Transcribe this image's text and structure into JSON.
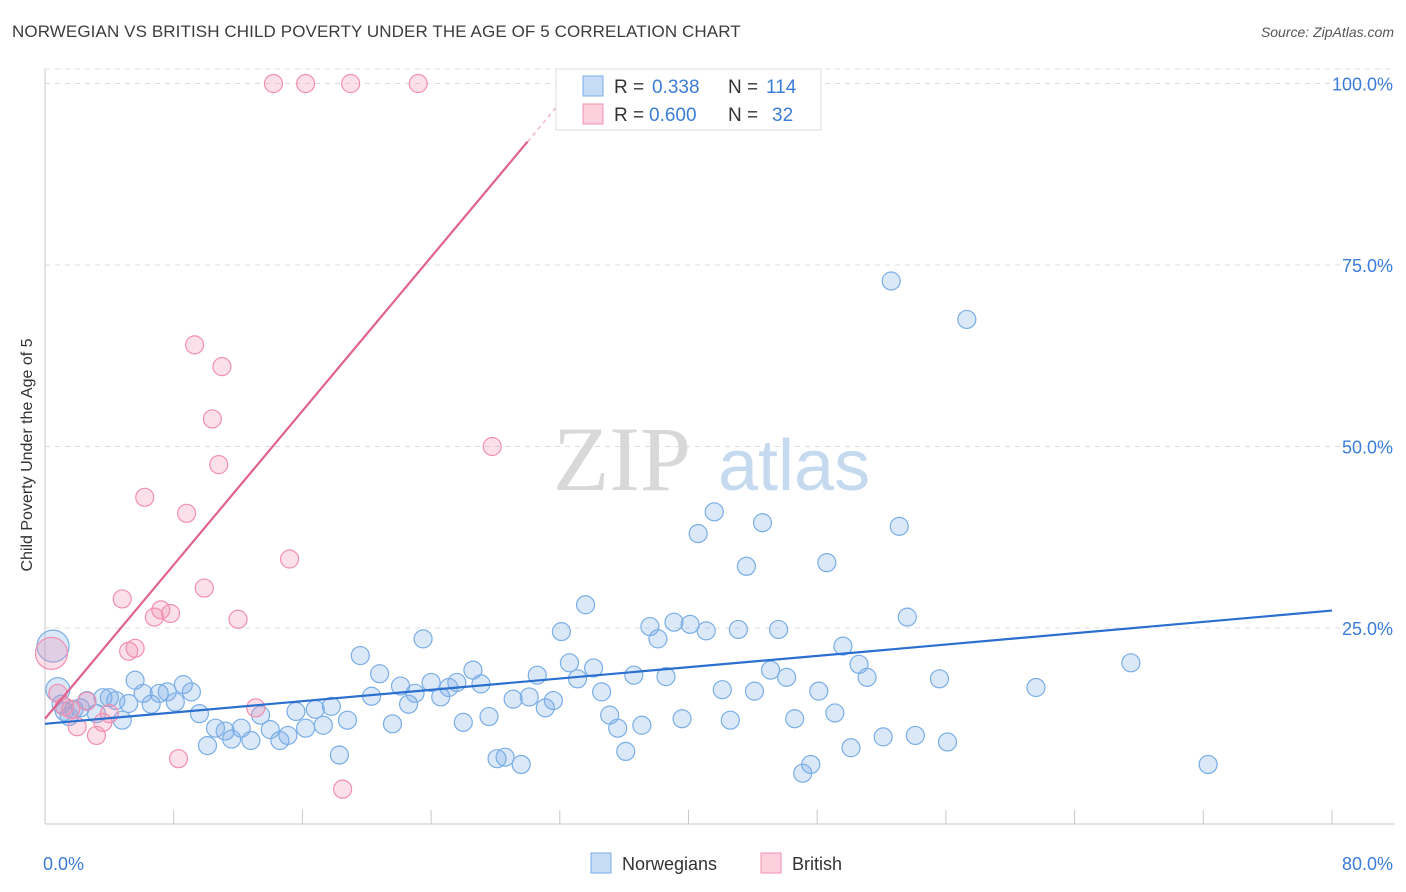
{
  "header": {
    "title": "NORWEGIAN VS BRITISH CHILD POVERTY UNDER THE AGE OF 5 CORRELATION CHART",
    "source": "Source: ZipAtlas.com"
  },
  "watermark": {
    "zip": "ZIP",
    "atlas": "atlas"
  },
  "legend_top": [
    {
      "r_label": "R =",
      "r_value": "0.338",
      "n_label": "N =",
      "n_value": "114",
      "color": "#aecbf0"
    },
    {
      "r_label": "R =",
      "r_value": "0.600",
      "n_label": "N =",
      "n_value": "32",
      "color": "#f7b8cb"
    }
  ],
  "legend_bottom": [
    {
      "label": "Norwegians",
      "color": "#aecbf0"
    },
    {
      "label": "British",
      "color": "#f7b8cb"
    }
  ],
  "chart_data": {
    "type": "scatter",
    "title": "NORWEGIAN VS BRITISH CHILD POVERTY UNDER THE AGE OF 5 CORRELATION CHART",
    "xlabel": "",
    "ylabel": "Child Poverty Under the Age of 5",
    "xlim": [
      0,
      80
    ],
    "ylim": [
      -2,
      102
    ],
    "x_tick_labels": [
      "0.0%",
      "80.0%"
    ],
    "y_tick_labels": [
      "25.0%",
      "50.0%",
      "75.0%",
      "100.0%"
    ],
    "y_ticks": [
      25,
      50,
      75,
      100
    ],
    "series": [
      {
        "name": "Norwegians",
        "color": "#7aaee6",
        "line_color": "#2b6fcf",
        "trend": {
          "x": [
            0,
            80
          ],
          "y": [
            11.8,
            27.4
          ]
        },
        "points": [
          [
            0.5,
            22.5
          ],
          [
            0.8,
            16.5
          ],
          [
            1.0,
            14.5
          ],
          [
            1.2,
            13.5
          ],
          [
            1.5,
            12.8
          ],
          [
            1.8,
            13.8
          ],
          [
            2.2,
            14.0
          ],
          [
            2.6,
            15.0
          ],
          [
            3.2,
            13.2
          ],
          [
            3.6,
            15.4
          ],
          [
            4.0,
            15.4
          ],
          [
            4.4,
            15.0
          ],
          [
            4.8,
            12.3
          ],
          [
            5.2,
            14.6
          ],
          [
            5.6,
            17.8
          ],
          [
            6.1,
            16.0
          ],
          [
            6.6,
            14.5
          ],
          [
            7.1,
            16.0
          ],
          [
            7.6,
            16.2
          ],
          [
            8.1,
            14.8
          ],
          [
            8.6,
            17.2
          ],
          [
            9.1,
            16.2
          ],
          [
            9.6,
            13.2
          ],
          [
            10.1,
            8.8
          ],
          [
            10.6,
            11.2
          ],
          [
            11.2,
            10.8
          ],
          [
            11.6,
            9.7
          ],
          [
            12.2,
            11.2
          ],
          [
            12.8,
            9.5
          ],
          [
            13.4,
            13.0
          ],
          [
            14.0,
            11.0
          ],
          [
            14.6,
            9.5
          ],
          [
            15.1,
            10.2
          ],
          [
            15.6,
            13.5
          ],
          [
            16.2,
            11.2
          ],
          [
            16.8,
            13.8
          ],
          [
            17.3,
            11.6
          ],
          [
            17.8,
            14.2
          ],
          [
            18.3,
            7.5
          ],
          [
            18.8,
            12.3
          ],
          [
            19.6,
            21.2
          ],
          [
            20.3,
            15.6
          ],
          [
            20.8,
            18.7
          ],
          [
            21.6,
            11.8
          ],
          [
            22.1,
            17.0
          ],
          [
            22.6,
            14.5
          ],
          [
            23.0,
            16.0
          ],
          [
            23.5,
            23.5
          ],
          [
            24.0,
            17.5
          ],
          [
            24.6,
            15.5
          ],
          [
            25.1,
            16.8
          ],
          [
            25.6,
            17.5
          ],
          [
            26.0,
            12.0
          ],
          [
            26.6,
            19.2
          ],
          [
            27.1,
            17.3
          ],
          [
            27.6,
            12.8
          ],
          [
            28.1,
            7.0
          ],
          [
            28.6,
            7.2
          ],
          [
            29.1,
            15.2
          ],
          [
            29.6,
            6.2
          ],
          [
            30.1,
            15.5
          ],
          [
            30.6,
            18.5
          ],
          [
            31.1,
            14.0
          ],
          [
            31.6,
            15.0
          ],
          [
            32.1,
            24.5
          ],
          [
            32.6,
            20.2
          ],
          [
            33.1,
            18.0
          ],
          [
            33.6,
            28.2
          ],
          [
            34.1,
            19.5
          ],
          [
            34.6,
            16.2
          ],
          [
            35.1,
            13.0
          ],
          [
            35.6,
            11.2
          ],
          [
            36.1,
            8.0
          ],
          [
            36.6,
            18.5
          ],
          [
            37.1,
            11.6
          ],
          [
            37.6,
            25.2
          ],
          [
            38.1,
            23.5
          ],
          [
            38.6,
            18.3
          ],
          [
            39.1,
            25.8
          ],
          [
            39.6,
            12.5
          ],
          [
            40.1,
            25.5
          ],
          [
            40.6,
            38.0
          ],
          [
            41.1,
            24.6
          ],
          [
            41.6,
            41.0
          ],
          [
            42.1,
            16.5
          ],
          [
            42.6,
            12.3
          ],
          [
            43.1,
            24.8
          ],
          [
            43.6,
            33.5
          ],
          [
            44.1,
            16.3
          ],
          [
            44.6,
            39.5
          ],
          [
            45.1,
            19.2
          ],
          [
            45.6,
            24.8
          ],
          [
            46.1,
            18.2
          ],
          [
            46.6,
            12.5
          ],
          [
            47.1,
            5.0
          ],
          [
            47.6,
            6.2
          ],
          [
            48.1,
            16.3
          ],
          [
            48.6,
            34.0
          ],
          [
            49.1,
            13.3
          ],
          [
            49.6,
            22.5
          ],
          [
            50.1,
            8.5
          ],
          [
            50.6,
            20.0
          ],
          [
            51.1,
            18.2
          ],
          [
            52.1,
            10.0
          ],
          [
            52.6,
            72.8
          ],
          [
            53.1,
            39.0
          ],
          [
            53.6,
            26.5
          ],
          [
            54.1,
            10.2
          ],
          [
            55.6,
            18.0
          ],
          [
            56.1,
            9.3
          ],
          [
            57.3,
            67.5
          ],
          [
            61.6,
            16.8
          ],
          [
            67.5,
            20.2
          ],
          [
            72.3,
            6.2
          ]
        ]
      },
      {
        "name": "British",
        "color": "#f28fb0",
        "line_color": "#e0628d",
        "trend": {
          "x": [
            0,
            30
          ],
          "y": [
            12.5,
            92
          ]
        },
        "points": [
          [
            0.4,
            21.5
          ],
          [
            0.8,
            16.0
          ],
          [
            1.2,
            14.2
          ],
          [
            1.6,
            13.8
          ],
          [
            2.0,
            11.4
          ],
          [
            2.6,
            14.9
          ],
          [
            3.2,
            10.2
          ],
          [
            3.6,
            12.0
          ],
          [
            4.0,
            13.2
          ],
          [
            4.8,
            29.0
          ],
          [
            5.2,
            21.8
          ],
          [
            5.6,
            22.2
          ],
          [
            6.2,
            43.0
          ],
          [
            6.8,
            26.5
          ],
          [
            7.2,
            27.5
          ],
          [
            7.8,
            27.0
          ],
          [
            8.3,
            7.0
          ],
          [
            8.8,
            40.8
          ],
          [
            9.3,
            64.0
          ],
          [
            9.9,
            30.5
          ],
          [
            10.4,
            53.8
          ],
          [
            10.8,
            47.5
          ],
          [
            11.0,
            61.0
          ],
          [
            12.0,
            26.2
          ],
          [
            13.1,
            14.0
          ],
          [
            14.2,
            100.0
          ],
          [
            15.2,
            34.5
          ],
          [
            16.2,
            100.0
          ],
          [
            18.5,
            2.8
          ],
          [
            19.0,
            100.0
          ],
          [
            23.2,
            100.0
          ],
          [
            27.8,
            50.0
          ]
        ]
      }
    ]
  }
}
